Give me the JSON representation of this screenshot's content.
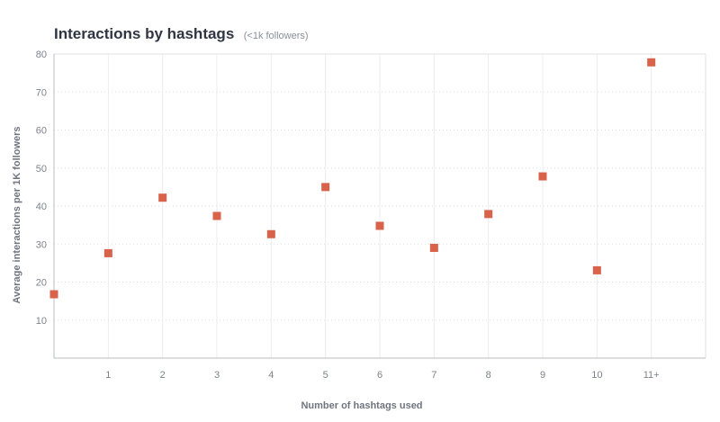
{
  "title": "Interactions by hashtags",
  "subtitle": "(<1k followers)",
  "chart_data": {
    "type": "scatter",
    "title": "Interactions by hashtags",
    "subtitle": "(<1k followers)",
    "xlabel": "Number of hashtags used",
    "ylabel": "Average interactions per 1K followers",
    "categories": [
      "0",
      "1",
      "2",
      "3",
      "4",
      "5",
      "6",
      "7",
      "8",
      "9",
      "10",
      "11+"
    ],
    "x_tick_labels": [
      "1",
      "2",
      "3",
      "4",
      "5",
      "6",
      "7",
      "8",
      "9",
      "10",
      "11+"
    ],
    "y_ticks": [
      10,
      20,
      30,
      40,
      50,
      60,
      70,
      80
    ],
    "y_tick_labels": [
      "10",
      "20",
      "30",
      "40",
      "50",
      "60",
      "70",
      "80"
    ],
    "ylim": [
      0,
      80
    ],
    "grid": true,
    "series": [
      {
        "values": [
          16.8,
          27.6,
          42.2,
          37.4,
          32.6,
          45,
          34.8,
          29,
          37.9,
          47.8,
          23.1,
          77.8
        ],
        "color": "#d9634a"
      }
    ]
  }
}
